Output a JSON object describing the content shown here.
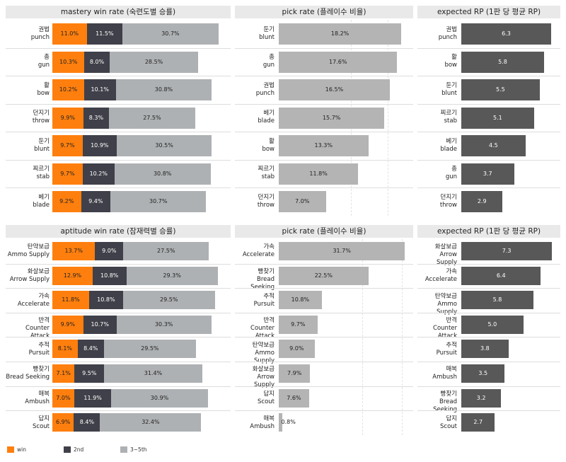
{
  "colors": {
    "win": "#ff7f0e",
    "second": "#3f4049",
    "third": "#aeb1b3",
    "pick": "#b4b4b4",
    "rp": "#585858"
  },
  "legend": {
    "win": "win",
    "second": "2nd",
    "third": "3~5th"
  },
  "chart_data": [
    {
      "type": "bar",
      "stacked": true,
      "orientation": "horizontal",
      "title": "mastery win rate (숙련도별 승률)",
      "categories": [
        [
          "권법",
          "punch"
        ],
        [
          "총",
          "gun"
        ],
        [
          "활",
          "bow"
        ],
        [
          "던지기",
          "throw"
        ],
        [
          "둔기",
          "blunt"
        ],
        [
          "찌르기",
          "stab"
        ],
        [
          "베기",
          "blade"
        ]
      ],
      "series": [
        {
          "name": "win",
          "values": [
            11.0,
            10.3,
            10.2,
            9.9,
            9.7,
            9.7,
            9.2
          ]
        },
        {
          "name": "2nd",
          "values": [
            11.5,
            8.0,
            10.1,
            8.3,
            10.9,
            10.2,
            9.4
          ]
        },
        {
          "name": "3~5th",
          "values": [
            30.7,
            28.5,
            30.8,
            27.5,
            30.5,
            30.8,
            30.7
          ]
        }
      ],
      "xlim": [
        0,
        56
      ]
    },
    {
      "type": "bar",
      "orientation": "horizontal",
      "title": "pick rate (플레이수 비율)",
      "categories": [
        [
          "둔기",
          "blunt"
        ],
        [
          "총",
          "gun"
        ],
        [
          "권법",
          "punch"
        ],
        [
          "베기",
          "blade"
        ],
        [
          "활",
          "bow"
        ],
        [
          "찌르기",
          "stab"
        ],
        [
          "던지기",
          "throw"
        ]
      ],
      "values": [
        18.2,
        17.6,
        16.5,
        15.7,
        13.3,
        11.8,
        7.0
      ],
      "xlim": [
        0,
        18.5
      ]
    },
    {
      "type": "bar",
      "orientation": "horizontal",
      "title": "expected RP (1판 당 평균 RP)",
      "categories": [
        [
          "권법",
          "punch"
        ],
        [
          "활",
          "bow"
        ],
        [
          "둔기",
          "blunt"
        ],
        [
          "찌르기",
          "stab"
        ],
        [
          "베기",
          "blade"
        ],
        [
          "총",
          "gun"
        ],
        [
          "던지기",
          "throw"
        ]
      ],
      "values": [
        6.3,
        5.8,
        5.5,
        5.1,
        4.5,
        3.7,
        2.9
      ],
      "xlim": [
        0,
        6.6
      ]
    },
    {
      "type": "bar",
      "stacked": true,
      "orientation": "horizontal",
      "title": "aptitude win rate (잠재력별 승률)",
      "categories": [
        [
          "탄약보급",
          "Ammo Supply"
        ],
        [
          "화살보급",
          "Arrow Supply"
        ],
        [
          "가속",
          "Accelerate"
        ],
        [
          "반격",
          "Counter Attack"
        ],
        [
          "추적",
          "Pursuit"
        ],
        [
          "빵찾기",
          "Bread Seeking"
        ],
        [
          "매복",
          "Ambush"
        ],
        [
          "답지",
          "Scout"
        ]
      ],
      "series": [
        {
          "name": "win",
          "values": [
            13.7,
            12.9,
            11.8,
            9.9,
            8.1,
            7.1,
            7.0,
            6.9
          ]
        },
        {
          "name": "2nd",
          "values": [
            9.0,
            10.8,
            10.8,
            10.7,
            8.4,
            9.5,
            11.9,
            8.4
          ]
        },
        {
          "name": "3~5th",
          "values": [
            27.5,
            29.3,
            29.5,
            30.3,
            29.5,
            31.4,
            30.9,
            32.4
          ]
        }
      ],
      "xlim": [
        0,
        56
      ]
    },
    {
      "type": "bar",
      "orientation": "horizontal",
      "title": "pick rate (플레이수 비율)",
      "categories": [
        [
          "가속",
          "Accelerate"
        ],
        [
          "빵찾기",
          "Bread Seeking"
        ],
        [
          "추적",
          "Pursuit"
        ],
        [
          "반격",
          "Counter Attack"
        ],
        [
          "탄약보급",
          "Ammo Supply"
        ],
        [
          "화살보급",
          "Arrow Supply"
        ],
        [
          "답지",
          "Scout"
        ],
        [
          "매복",
          "Ambush"
        ]
      ],
      "values": [
        31.7,
        22.5,
        10.8,
        9.7,
        9.0,
        7.9,
        7.6,
        0.8
      ],
      "xlim": [
        0,
        32
      ]
    },
    {
      "type": "bar",
      "orientation": "horizontal",
      "title": "expected RP (1판 당 평균 RP)",
      "categories": [
        [
          "화살보급",
          "Arrow Supply"
        ],
        [
          "가속",
          "Accelerate"
        ],
        [
          "탄약보급",
          "Ammo Supply"
        ],
        [
          "반격",
          "Counter Attack"
        ],
        [
          "추적",
          "Pursuit"
        ],
        [
          "매복",
          "Ambush"
        ],
        [
          "빵찾기",
          "Bread Seeking"
        ],
        [
          "답지",
          "Scout"
        ]
      ],
      "values": [
        7.3,
        6.4,
        5.8,
        5.0,
        3.8,
        3.5,
        3.2,
        2.7
      ],
      "xlim": [
        0,
        7.4
      ]
    }
  ]
}
